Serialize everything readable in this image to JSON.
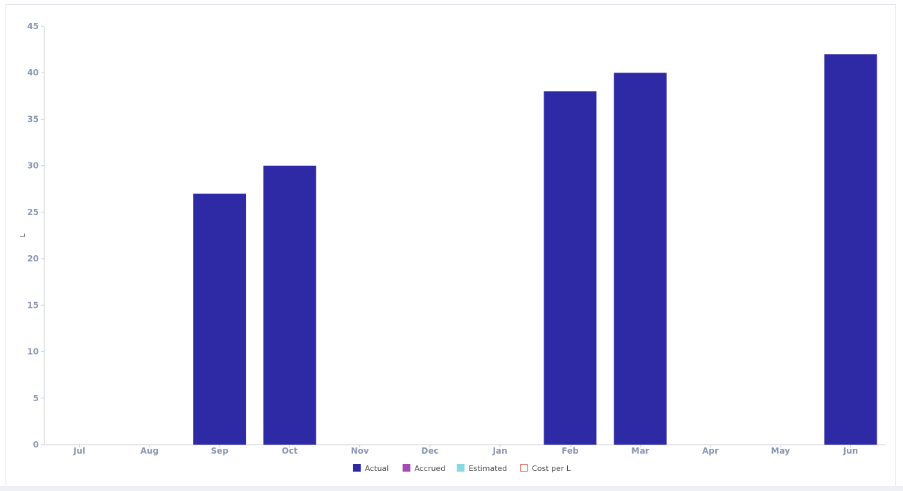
{
  "chart_data": {
    "type": "bar",
    "categories": [
      "Jul",
      "Aug",
      "Sep",
      "Oct",
      "Nov",
      "Dec",
      "Jan",
      "Feb",
      "Mar",
      "Apr",
      "May",
      "Jun"
    ],
    "series": [
      {
        "name": "Actual",
        "color": "#2e2aa5",
        "values": [
          0,
          0,
          27,
          30,
          0,
          0,
          0,
          38,
          40,
          0,
          0,
          42
        ]
      }
    ],
    "ylabel": "L",
    "ylim": [
      0,
      45
    ],
    "yticks": [
      0,
      5,
      10,
      15,
      20,
      25,
      30,
      35,
      40,
      45
    ],
    "legend": [
      {
        "name": "Actual",
        "color": "#2e2aa5",
        "style": "filled"
      },
      {
        "name": "Accrued",
        "color": "#a24db3",
        "style": "filled"
      },
      {
        "name": "Estimated",
        "color": "#86d9e3",
        "style": "filled"
      },
      {
        "name": "Cost per L",
        "color": "#e07060",
        "style": "outline"
      }
    ],
    "legend_position": "bottom-center",
    "grid": false
  }
}
